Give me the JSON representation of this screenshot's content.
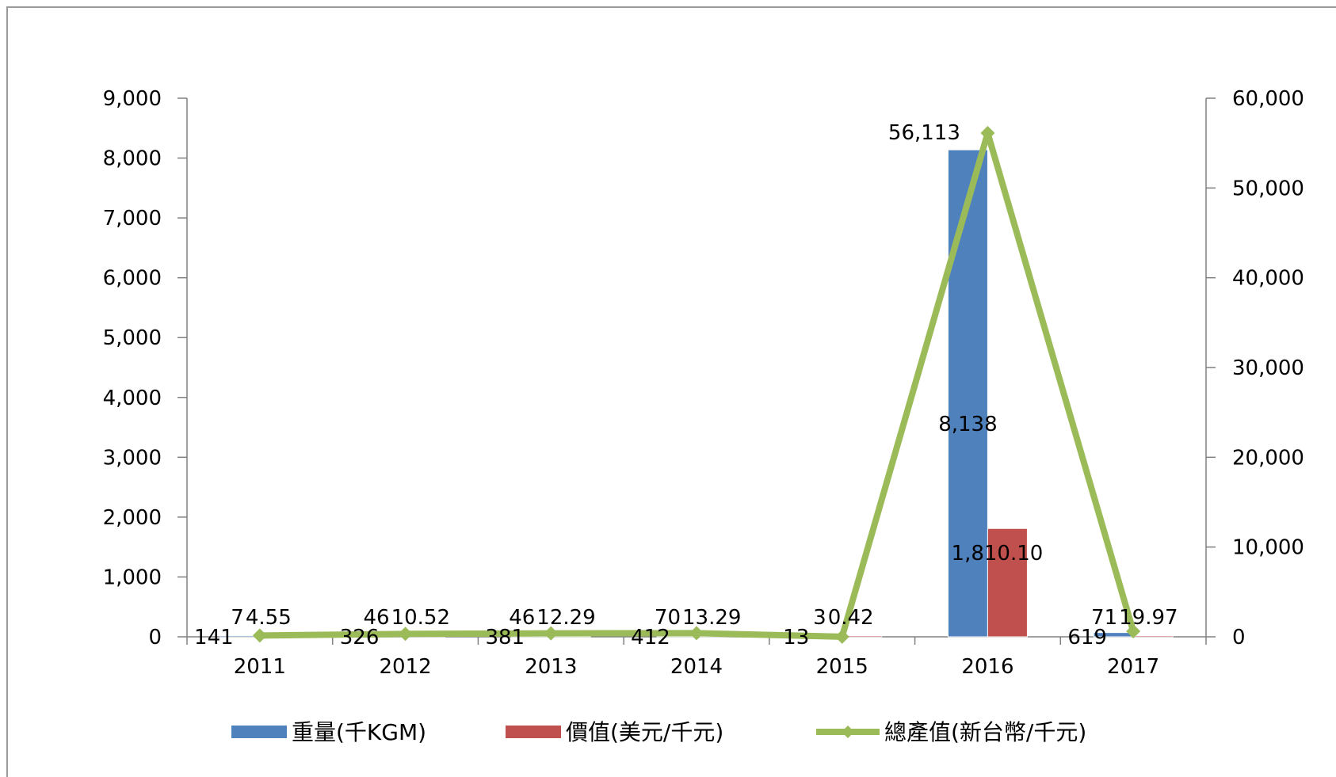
{
  "chart_data": {
    "type": "bar",
    "categories": [
      "2011",
      "2012",
      "2013",
      "2014",
      "2015",
      "2016",
      "2017"
    ],
    "y_left": {
      "ticks": [
        "0",
        "1,000",
        "2,000",
        "3,000",
        "4,000",
        "5,000",
        "6,000",
        "7,000",
        "8,000",
        "9,000"
      ],
      "ylim": [
        0,
        9000
      ]
    },
    "y_right": {
      "ticks": [
        "0",
        "10,000",
        "20,000",
        "30,000",
        "40,000",
        "50,000",
        "60,000"
      ],
      "ylim": [
        0,
        60000
      ]
    },
    "series": [
      {
        "name": "重量(千KGM)",
        "kind": "bar",
        "axis": "left",
        "color": "#4f81bd",
        "values": [
          7,
          46,
          46,
          70,
          3,
          8138,
          71
        ],
        "labels": [
          "7",
          "46",
          "46",
          "70",
          "3",
          "8,138",
          "71"
        ]
      },
      {
        "name": "價值(美元/千元)",
        "kind": "bar",
        "axis": "left",
        "color": "#c0504d",
        "values": [
          4.55,
          10.52,
          12.29,
          13.29,
          0.42,
          1810.1,
          19.97
        ],
        "labels": [
          "4.55",
          "10.52",
          "12.29",
          "13.29",
          "0.42",
          "1,810.10",
          "19.97"
        ]
      },
      {
        "name": "總產值(新台幣/千元)",
        "kind": "line",
        "axis": "right",
        "color": "#9bbb59",
        "values": [
          141,
          326,
          381,
          412,
          13,
          56113,
          619
        ],
        "labels": [
          "141",
          "326",
          "381",
          "412",
          "13",
          "56,113",
          "619"
        ]
      }
    ],
    "legend": "bottom",
    "grid": false
  }
}
